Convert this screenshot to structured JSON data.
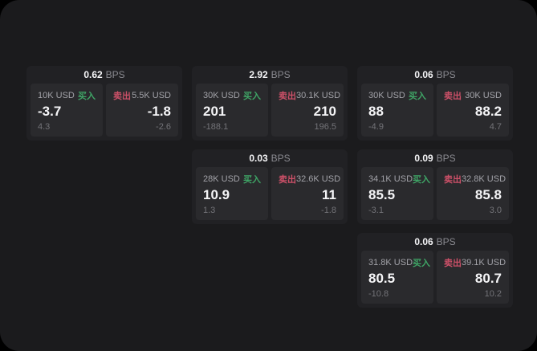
{
  "labels": {
    "bps_unit": "BPS",
    "buy": "买入",
    "sell": "卖出"
  },
  "colors": {
    "buy": "#3fa566",
    "sell": "#cc5068",
    "page_bg": "#1b1b1d",
    "card_bg": "#212124",
    "panel_bg": "#2a2a2d"
  },
  "cards": [
    {
      "col": 1,
      "row": 1,
      "bps": "0.62",
      "buy": {
        "amount": "10K USD",
        "price": "-3.7",
        "delta": "4.3"
      },
      "sell": {
        "amount": "5.5K USD",
        "price": "-1.8",
        "delta": "-2.6"
      }
    },
    {
      "col": 2,
      "row": 1,
      "bps": "2.92",
      "buy": {
        "amount": "30K USD",
        "price": "201",
        "delta": "-188.1"
      },
      "sell": {
        "amount": "30.1K USD",
        "price": "210",
        "delta": "196.5"
      }
    },
    {
      "col": 3,
      "row": 1,
      "bps": "0.06",
      "buy": {
        "amount": "30K USD",
        "price": "88",
        "delta": "-4.9"
      },
      "sell": {
        "amount": "30K USD",
        "price": "88.2",
        "delta": "4.7"
      }
    },
    {
      "col": 2,
      "row": 2,
      "bps": "0.03",
      "buy": {
        "amount": "28K USD",
        "price": "10.9",
        "delta": "1.3"
      },
      "sell": {
        "amount": "32.6K USD",
        "price": "11",
        "delta": "-1.8"
      }
    },
    {
      "col": 3,
      "row": 2,
      "bps": "0.09",
      "buy": {
        "amount": "34.1K USD",
        "price": "85.5",
        "delta": "-3.1"
      },
      "sell": {
        "amount": "32.8K USD",
        "price": "85.8",
        "delta": "3.0"
      }
    },
    {
      "col": 3,
      "row": 3,
      "bps": "0.06",
      "buy": {
        "amount": "31.8K USD",
        "price": "80.5",
        "delta": "-10.8"
      },
      "sell": {
        "amount": "39.1K USD",
        "price": "80.7",
        "delta": "10.2"
      }
    }
  ]
}
